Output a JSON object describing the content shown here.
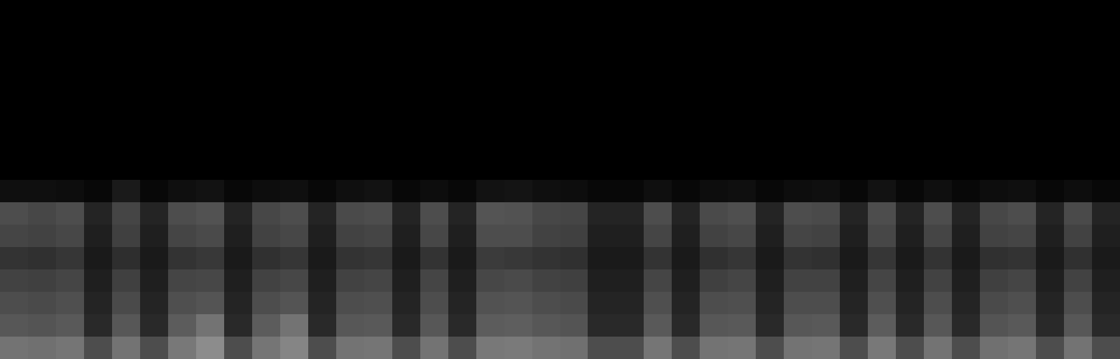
{
  "chart_data": {
    "type": "heatmap",
    "tick_labels": false,
    "color_range": [
      0,
      1
    ],
    "cells": [
      [
        0.06,
        0.06,
        0.05,
        0.03,
        0.1,
        0.03,
        0.06,
        0.07,
        0.03,
        0.05,
        0.06,
        0.03,
        0.06,
        0.07,
        0.03,
        0.05,
        0.03,
        0.07,
        0.08,
        0.06,
        0.05,
        0.03,
        0.03,
        0.06,
        0.03,
        0.05,
        0.06,
        0.03,
        0.05,
        0.06,
        0.03,
        0.07,
        0.03,
        0.06,
        0.03,
        0.05,
        0.06,
        0.03,
        0.05,
        0.03
      ],
      [
        0.3,
        0.28,
        0.3,
        0.14,
        0.27,
        0.14,
        0.3,
        0.32,
        0.14,
        0.28,
        0.3,
        0.14,
        0.29,
        0.3,
        0.14,
        0.3,
        0.14,
        0.33,
        0.32,
        0.28,
        0.27,
        0.14,
        0.14,
        0.3,
        0.14,
        0.29,
        0.31,
        0.14,
        0.3,
        0.29,
        0.14,
        0.3,
        0.14,
        0.3,
        0.14,
        0.28,
        0.3,
        0.14,
        0.29,
        0.14
      ],
      [
        0.27,
        0.26,
        0.28,
        0.12,
        0.25,
        0.12,
        0.27,
        0.29,
        0.12,
        0.26,
        0.28,
        0.12,
        0.26,
        0.27,
        0.12,
        0.28,
        0.12,
        0.3,
        0.3,
        0.26,
        0.25,
        0.12,
        0.12,
        0.27,
        0.12,
        0.26,
        0.28,
        0.12,
        0.27,
        0.26,
        0.12,
        0.28,
        0.12,
        0.27,
        0.12,
        0.26,
        0.27,
        0.12,
        0.26,
        0.12
      ],
      [
        0.2,
        0.19,
        0.21,
        0.1,
        0.18,
        0.1,
        0.2,
        0.22,
        0.1,
        0.19,
        0.21,
        0.1,
        0.2,
        0.21,
        0.1,
        0.2,
        0.1,
        0.23,
        0.22,
        0.2,
        0.19,
        0.1,
        0.1,
        0.2,
        0.1,
        0.19,
        0.21,
        0.1,
        0.2,
        0.19,
        0.1,
        0.21,
        0.1,
        0.2,
        0.1,
        0.19,
        0.2,
        0.1,
        0.19,
        0.1
      ],
      [
        0.26,
        0.25,
        0.27,
        0.12,
        0.25,
        0.12,
        0.27,
        0.28,
        0.12,
        0.26,
        0.28,
        0.12,
        0.26,
        0.27,
        0.12,
        0.27,
        0.12,
        0.28,
        0.29,
        0.26,
        0.25,
        0.12,
        0.12,
        0.27,
        0.12,
        0.25,
        0.27,
        0.12,
        0.26,
        0.26,
        0.12,
        0.27,
        0.12,
        0.26,
        0.12,
        0.25,
        0.27,
        0.12,
        0.26,
        0.12
      ],
      [
        0.3,
        0.29,
        0.31,
        0.14,
        0.29,
        0.14,
        0.31,
        0.33,
        0.14,
        0.3,
        0.33,
        0.14,
        0.3,
        0.31,
        0.14,
        0.3,
        0.14,
        0.32,
        0.33,
        0.3,
        0.29,
        0.14,
        0.14,
        0.31,
        0.14,
        0.3,
        0.31,
        0.14,
        0.3,
        0.3,
        0.14,
        0.31,
        0.14,
        0.3,
        0.14,
        0.29,
        0.31,
        0.14,
        0.3,
        0.14
      ],
      [
        0.34,
        0.33,
        0.35,
        0.16,
        0.34,
        0.16,
        0.36,
        0.45,
        0.16,
        0.36,
        0.45,
        0.16,
        0.34,
        0.35,
        0.16,
        0.34,
        0.16,
        0.36,
        0.37,
        0.34,
        0.33,
        0.16,
        0.16,
        0.35,
        0.16,
        0.34,
        0.35,
        0.16,
        0.34,
        0.35,
        0.16,
        0.36,
        0.16,
        0.34,
        0.16,
        0.33,
        0.35,
        0.16,
        0.34,
        0.16
      ],
      [
        0.45,
        0.44,
        0.46,
        0.3,
        0.45,
        0.3,
        0.47,
        0.55,
        0.3,
        0.46,
        0.52,
        0.3,
        0.45,
        0.46,
        0.3,
        0.45,
        0.3,
        0.47,
        0.48,
        0.45,
        0.44,
        0.3,
        0.3,
        0.46,
        0.3,
        0.45,
        0.46,
        0.3,
        0.45,
        0.46,
        0.3,
        0.47,
        0.3,
        0.45,
        0.3,
        0.44,
        0.46,
        0.3,
        0.45,
        0.3
      ]
    ]
  }
}
